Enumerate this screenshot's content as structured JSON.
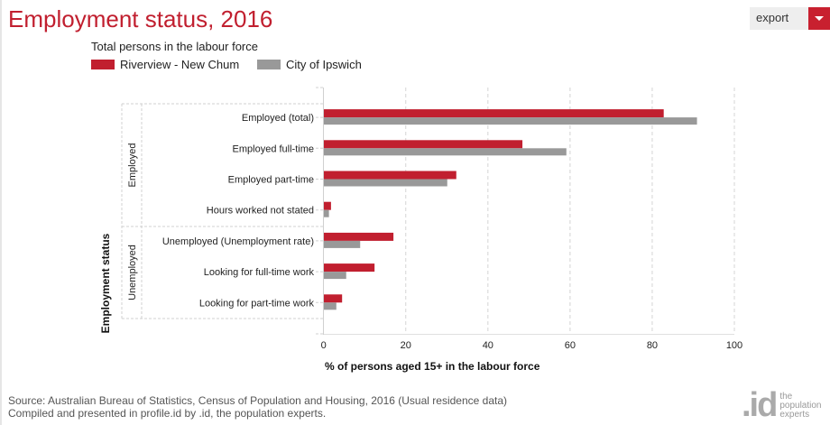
{
  "header": {
    "title": "Employment status, 2016",
    "export_label": "export"
  },
  "legend": {
    "subtitle": "Total persons in the labour force",
    "items": [
      {
        "label": "Riverview - New Chum",
        "color": "#c11f2f"
      },
      {
        "label": "City of Ipswich",
        "color": "#999999"
      }
    ]
  },
  "chart_data": {
    "type": "bar",
    "orientation": "horizontal",
    "title": "Employment status, 2016",
    "subtitle": "Total persons in the labour force",
    "xlabel": "% of persons aged 15+ in the labour force",
    "ylabel": "Employment status",
    "xlim": [
      0,
      100
    ],
    "xticks": [
      "0",
      "20",
      "40",
      "60",
      "80",
      "100"
    ],
    "grid": true,
    "legend_position": "top-left",
    "groups": [
      {
        "label": "Employed",
        "categories": [
          "Employed (total)",
          "Employed full-time",
          "Employed part-time",
          "Hours worked not stated"
        ]
      },
      {
        "label": "Unemployed",
        "categories": [
          "Unemployed (Unemployment rate)",
          "Looking for full-time work",
          "Looking for part-time work"
        ]
      }
    ],
    "categories": [
      "Employed (total)",
      "Employed full-time",
      "Employed part-time",
      "Hours worked not stated",
      "Unemployed (Unemployment rate)",
      "Looking for full-time work",
      "Looking for part-time work"
    ],
    "series": [
      {
        "name": "Riverview - New Chum",
        "color": "#c11f2f",
        "values": [
          82.8,
          48.4,
          32.3,
          1.8,
          17.0,
          12.4,
          4.5
        ]
      },
      {
        "name": "City of Ipswich",
        "color": "#999999",
        "values": [
          90.9,
          59.1,
          30.1,
          1.3,
          8.9,
          5.5,
          3.1
        ]
      }
    ]
  },
  "footer": {
    "source": "Source: Australian Bureau of Statistics, Census of Population and Housing, 2016 (Usual residence data)",
    "compiled": "Compiled and presented in profile.id by .id, the population experts.",
    "logo_mark": ".id",
    "logo_line1": "the",
    "logo_line2": "population",
    "logo_line3": "experts"
  }
}
